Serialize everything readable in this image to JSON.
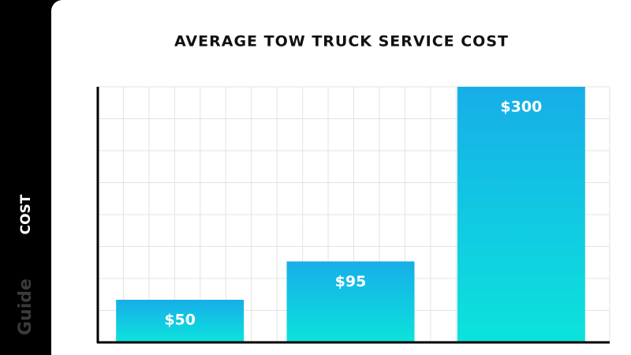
{
  "chart_data": {
    "type": "bar",
    "title": "AVERAGE TOW TRUCK SERVICE COST",
    "y_label": "COST",
    "watermark": "Guide",
    "categories": [
      null,
      null,
      null
    ],
    "values": [
      50,
      95,
      300
    ],
    "value_labels": [
      "$50",
      "$95",
      "$300"
    ],
    "color": "#14b4e8",
    "ylim": [
      0,
      300
    ],
    "grid": true
  }
}
